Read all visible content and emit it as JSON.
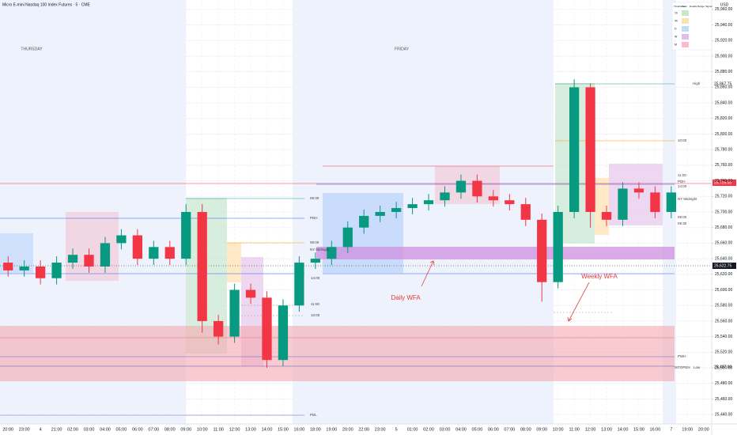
{
  "chart_data": {
    "type": "candlestick",
    "title": "Micro E-mini Nasdaq 100 Index Futures · 5 · CME",
    "currency": "USD",
    "categories": [
      "20:00",
      "23:00",
      "4",
      "21:00",
      "02:00",
      "03:00",
      "04:00",
      "05:00",
      "06:00",
      "07:00",
      "08:00",
      "09:00",
      "10:00",
      "11:00",
      "12:00",
      "13:00",
      "14:00",
      "15:00",
      "16:00",
      "18:00",
      "19:00",
      "20:00",
      "22:00",
      "23:00",
      "5",
      "01:00",
      "02:00",
      "03:00",
      "04:00",
      "05:00",
      "06:00",
      "07:00",
      "08:00",
      "09:00",
      "10:00",
      "11:00",
      "12:00",
      "13:00",
      "14:00",
      "15:00",
      "16:00",
      "7",
      "19:00",
      "20:00"
    ],
    "open": [
      25635,
      25625,
      25630,
      25615,
      25635,
      25645,
      25630,
      25660,
      25670,
      25640,
      25655,
      25640,
      25700,
      25560,
      25540,
      25600,
      25590,
      25510,
      25580,
      25635,
      25640,
      25655,
      25680,
      25695,
      25700,
      25705,
      25710,
      25715,
      25725,
      25740,
      25720,
      25715,
      25710,
      25690,
      25610,
      25700,
      25860,
      25700,
      25690,
      25730,
      25725,
      25700,
      null,
      null
    ],
    "high": [
      25643,
      25638,
      25638,
      25643,
      25653,
      25653,
      25668,
      25678,
      25678,
      25663,
      25663,
      25710,
      25710,
      25568,
      25608,
      25608,
      25598,
      25588,
      25643,
      25648,
      25663,
      25688,
      25703,
      25708,
      25713,
      25718,
      25723,
      25733,
      25748,
      25748,
      25728,
      25723,
      25718,
      25698,
      25708,
      25870,
      25865,
      25708,
      25738,
      25738,
      25733,
      25733,
      null,
      null
    ],
    "low": [
      25617,
      25617,
      25607,
      25607,
      25627,
      25622,
      25622,
      25652,
      25632,
      25632,
      25632,
      25632,
      25545,
      25530,
      25532,
      25582,
      25500,
      25502,
      25572,
      25627,
      25632,
      25647,
      25672,
      25687,
      25692,
      25697,
      25702,
      25707,
      25717,
      25712,
      25707,
      25702,
      25682,
      25585,
      25602,
      25692,
      25680,
      25682,
      25682,
      25717,
      25692,
      25692,
      null,
      null
    ],
    "close": [
      25625,
      25630,
      25615,
      25635,
      25645,
      25630,
      25660,
      25670,
      25640,
      25655,
      25640,
      25700,
      25560,
      25540,
      25600,
      25590,
      25510,
      25580,
      25635,
      25640,
      25655,
      25680,
      25695,
      25700,
      25705,
      25710,
      25715,
      25725,
      25740,
      25720,
      25715,
      25710,
      25690,
      25610,
      25700,
      25860,
      25700,
      25690,
      25730,
      25725,
      25700,
      25725,
      null,
      null
    ],
    "up_color": "#089981",
    "down_color": "#f23645",
    "ylim": [
      25428,
      25972
    ],
    "yticks": [
      {
        "value": 25440,
        "label": "25,440.00"
      },
      {
        "value": 25460,
        "label": "25,460.00"
      },
      {
        "value": 25480,
        "label": "25,480.00"
      },
      {
        "value": 25500,
        "label": "25,500.00"
      },
      {
        "value": 25520,
        "label": "25,520.00"
      },
      {
        "value": 25540,
        "label": "25,540.00"
      },
      {
        "value": 25560,
        "label": "25,560.00"
      },
      {
        "value": 25580,
        "label": "25,580.00"
      },
      {
        "value": 25600,
        "label": "25,600.00"
      },
      {
        "value": 25620,
        "label": "25,620.00"
      },
      {
        "value": 25640,
        "label": "25,640.00"
      },
      {
        "value": 25660,
        "label": "25,660.00"
      },
      {
        "value": 25680,
        "label": "25,680.00"
      },
      {
        "value": 25700,
        "label": "25,700.00"
      },
      {
        "value": 25720,
        "label": "25,720.00"
      },
      {
        "value": 25740,
        "label": "25,740.00"
      },
      {
        "value": 25760,
        "label": "25,760.00"
      },
      {
        "value": 25780,
        "label": "25,780.00"
      },
      {
        "value": 25800,
        "label": "25,800.00"
      },
      {
        "value": 25820,
        "label": "25,820.00"
      },
      {
        "value": 25840,
        "label": "25,840.00"
      },
      {
        "value": 25860,
        "label": "25,860.00"
      },
      {
        "value": 25880,
        "label": "25,880.00"
      },
      {
        "value": 25900,
        "label": "25,900.00"
      },
      {
        "value": 25920,
        "label": "25,920.00"
      },
      {
        "value": 25940,
        "label": "25,940.00"
      },
      {
        "value": 25960,
        "label": "25,960.00"
      }
    ],
    "grid": true
  },
  "overlay": {
    "sessions": [
      "THURSDAY",
      "FRIDAY"
    ],
    "callouts": [
      "Daily WFA",
      "Weekly WFA"
    ],
    "levels": [
      "09:30",
      "PDH",
      "08:00",
      "NY Midnight",
      "14:00",
      "11:00",
      "10:00",
      "PDL",
      "10:00",
      "11:00",
      "PDH",
      "14:00",
      "NY Midnight",
      "08:00",
      "09:30",
      "PWH",
      "WTOPEN",
      "High",
      "Low"
    ],
    "price_tags": [
      "25,867.75",
      "25,725.00",
      "25,622.75",
      "25,487.00"
    ],
    "table_header": [
      "Timeframe",
      "Color",
      "Details",
      "Range",
      "Signal"
    ],
    "table_rows": [
      "1h",
      "4h",
      "D",
      "W",
      "M"
    ]
  }
}
